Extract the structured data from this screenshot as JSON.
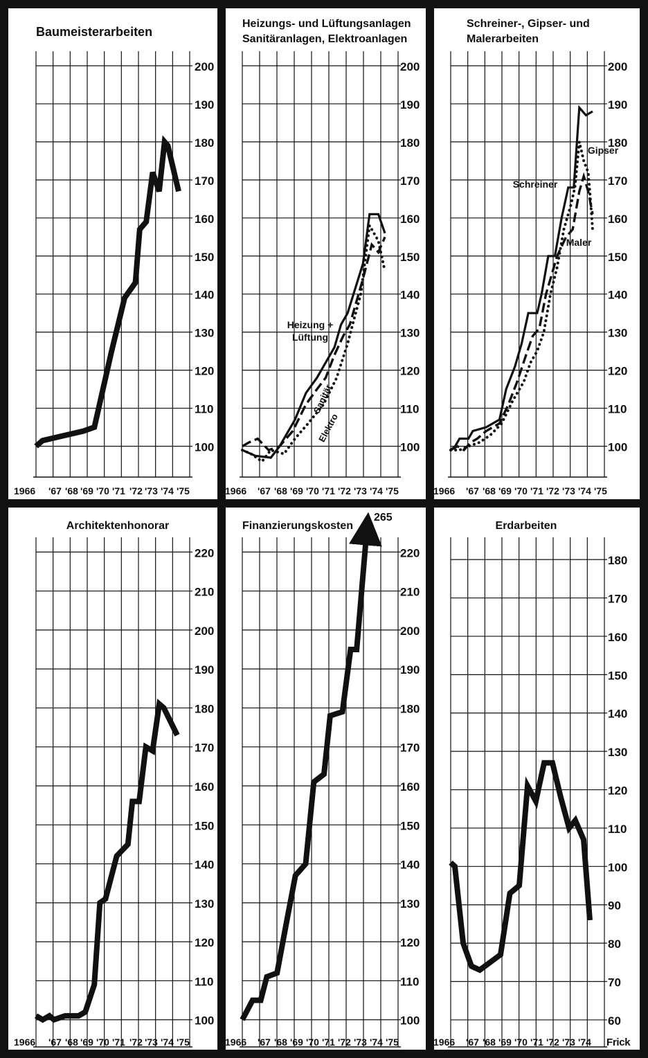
{
  "credit": "Frick",
  "colors": {
    "ink": "#111111",
    "paper": "#ffffff"
  },
  "chart_data": [
    {
      "type": "line",
      "title": "Baumeisterarbeiten",
      "x_tick_labels": [
        "1966",
        "'67",
        "'68",
        "'69",
        "'70",
        "'71",
        "'72",
        "'73",
        "'74",
        "'75"
      ],
      "y_ticks": [
        200,
        190,
        180,
        170,
        160,
        150,
        140,
        130,
        120,
        110,
        100
      ],
      "ylim": [
        97,
        202
      ],
      "grid": true,
      "series": [
        {
          "style": "thick",
          "points": [
            [
              1966.0,
              100
            ],
            [
              1966.3,
              101.5
            ],
            [
              1968.2,
              104
            ],
            [
              1968.7,
              105
            ],
            [
              1969.5,
              125
            ],
            [
              1970.1,
              139
            ],
            [
              1970.6,
              143
            ],
            [
              1970.8,
              157
            ],
            [
              1971.1,
              159
            ],
            [
              1971.4,
              172
            ],
            [
              1971.7,
              167
            ],
            [
              1971.95,
              180
            ],
            [
              1972.1,
              179
            ],
            [
              1972.6,
              167
            ]
          ]
        }
      ]
    },
    {
      "type": "line",
      "title": "Heizungs- und Lüftungsanlagen\nSanitäranlagen, Elektroanlagen",
      "x_tick_labels": [
        "1966",
        "'67",
        "'68",
        "'69",
        "'70",
        "'71",
        "'72",
        "'73",
        "'74",
        "'75"
      ],
      "y_ticks": [
        200,
        190,
        180,
        170,
        160,
        150,
        140,
        130,
        120,
        110,
        100
      ],
      "ylim": [
        97,
        202
      ],
      "grid": true,
      "series": [
        {
          "name": "Heizung + Lüftung",
          "style": "solid",
          "points": [
            [
              1966.0,
              99
            ],
            [
              1966.2,
              98.5
            ],
            [
              1966.6,
              97.5
            ],
            [
              1967.3,
              97
            ],
            [
              1967.7,
              100
            ],
            [
              1968.4,
              107
            ],
            [
              1968.9,
              114
            ],
            [
              1969.4,
              118
            ],
            [
              1969.7,
              121
            ],
            [
              1970.2,
              126
            ],
            [
              1970.5,
              132
            ],
            [
              1970.8,
              135
            ],
            [
              1971.5,
              148
            ],
            [
              1971.8,
              161
            ],
            [
              1972.2,
              161
            ],
            [
              1972.5,
              156
            ]
          ]
        },
        {
          "name": "Sanitär",
          "style": "dashed",
          "points": [
            [
              1966.0,
              100
            ],
            [
              1966.3,
              101
            ],
            [
              1966.7,
              102
            ],
            [
              1967.2,
              99
            ],
            [
              1967.7,
              100
            ],
            [
              1968.3,
              104
            ],
            [
              1968.9,
              111
            ],
            [
              1969.4,
              115
            ],
            [
              1969.8,
              118
            ],
            [
              1970.2,
              124
            ],
            [
              1970.6,
              129
            ],
            [
              1970.9,
              132
            ],
            [
              1971.5,
              144
            ],
            [
              1971.9,
              153
            ],
            [
              1972.2,
              151
            ],
            [
              1972.5,
              155
            ]
          ]
        },
        {
          "name": "Elektro",
          "style": "dotted",
          "points": [
            [
              1966.0,
              99
            ],
            [
              1966.4,
              98
            ],
            [
              1966.9,
              96
            ],
            [
              1967.3,
              99
            ],
            [
              1967.9,
              98
            ],
            [
              1968.4,
              102
            ],
            [
              1969.0,
              106
            ],
            [
              1969.7,
              111
            ],
            [
              1970.3,
              118
            ],
            [
              1970.8,
              127
            ],
            [
              1971.4,
              140
            ],
            [
              1971.8,
              158
            ],
            [
              1972.2,
              154
            ],
            [
              1972.5,
              146
            ]
          ]
        }
      ],
      "annotations": [
        "Heizung +\nLüftung",
        "Sanitär",
        "Elektro"
      ]
    },
    {
      "type": "line",
      "title": "Schreiner-, Gipser- und\nMalerarbeiten",
      "x_tick_labels": [
        "1966",
        "'67",
        "'68",
        "'69",
        "'70",
        "'71",
        "'72",
        "'73",
        "'74",
        "'75"
      ],
      "y_ticks": [
        200,
        190,
        180,
        170,
        160,
        150,
        140,
        130,
        120,
        110,
        100
      ],
      "ylim": [
        97,
        202
      ],
      "grid": true,
      "series": [
        {
          "name": "Schreiner",
          "style": "solid",
          "points": [
            [
              1966.0,
              99
            ],
            [
              1966.2,
              100
            ],
            [
              1966.4,
              102
            ],
            [
              1966.8,
              102
            ],
            [
              1967.0,
              104
            ],
            [
              1967.6,
              105
            ],
            [
              1968.2,
              107
            ],
            [
              1968.5,
              115
            ],
            [
              1968.9,
              121
            ],
            [
              1969.2,
              127
            ],
            [
              1969.5,
              135
            ],
            [
              1969.9,
              135
            ],
            [
              1970.1,
              140
            ],
            [
              1970.4,
              150
            ],
            [
              1970.7,
              150
            ],
            [
              1971.0,
              160
            ],
            [
              1971.3,
              168
            ],
            [
              1971.55,
              168
            ],
            [
              1971.8,
              189
            ],
            [
              1972.1,
              187
            ],
            [
              1972.4,
              188
            ]
          ]
        },
        {
          "name": "Maler",
          "style": "dashed",
          "points": [
            [
              1966.0,
              99
            ],
            [
              1966.3,
              100
            ],
            [
              1966.6,
              99
            ],
            [
              1966.9,
              101
            ],
            [
              1967.2,
              102
            ],
            [
              1967.6,
              104
            ],
            [
              1968.2,
              106
            ],
            [
              1968.6,
              111
            ],
            [
              1969.0,
              117
            ],
            [
              1969.4,
              124
            ],
            [
              1969.7,
              129
            ],
            [
              1970.0,
              131
            ],
            [
              1970.3,
              140
            ],
            [
              1970.8,
              150
            ],
            [
              1971.2,
              155
            ],
            [
              1971.5,
              157
            ],
            [
              1971.8,
              167
            ],
            [
              1972.0,
              171
            ],
            [
              1972.2,
              167
            ],
            [
              1972.4,
              161
            ]
          ]
        },
        {
          "name": "Gipser",
          "style": "dotted",
          "points": [
            [
              1966.0,
              99
            ],
            [
              1966.4,
              99
            ],
            [
              1966.8,
              100
            ],
            [
              1967.3,
              101
            ],
            [
              1967.8,
              103
            ],
            [
              1968.3,
              106
            ],
            [
              1968.8,
              112
            ],
            [
              1969.3,
              117
            ],
            [
              1969.6,
              122
            ],
            [
              1969.9,
              125
            ],
            [
              1970.2,
              130
            ],
            [
              1970.5,
              140
            ],
            [
              1970.8,
              147
            ],
            [
              1971.1,
              157
            ],
            [
              1971.4,
              163
            ],
            [
              1971.6,
              168
            ],
            [
              1971.8,
              180
            ],
            [
              1972.0,
              175
            ],
            [
              1972.2,
              172
            ],
            [
              1972.3,
              165
            ],
            [
              1972.4,
              157
            ]
          ]
        }
      ],
      "annotations": [
        "Schreiner",
        "Gipser",
        "Maler"
      ]
    },
    {
      "type": "line",
      "title": "Architektenhonorar",
      "x_tick_labels": [
        "1966",
        "'67",
        "'68",
        "'69",
        "'70",
        "'71",
        "'72",
        "'73",
        "'74",
        "'75"
      ],
      "y_ticks": [
        220,
        210,
        200,
        190,
        180,
        170,
        160,
        150,
        140,
        130,
        120,
        110,
        100
      ],
      "ylim": [
        98,
        222
      ],
      "grid": true,
      "series": [
        {
          "style": "thick",
          "points": [
            [
              1966.0,
              101
            ],
            [
              1966.3,
              100
            ],
            [
              1966.6,
              101
            ],
            [
              1966.8,
              100
            ],
            [
              1967.3,
              101
            ],
            [
              1967.9,
              101
            ],
            [
              1968.2,
              102
            ],
            [
              1968.6,
              109
            ],
            [
              1968.85,
              130
            ],
            [
              1969.1,
              131
            ],
            [
              1969.6,
              142
            ],
            [
              1970.1,
              145
            ],
            [
              1970.3,
              156
            ],
            [
              1970.6,
              156
            ],
            [
              1970.9,
              170
            ],
            [
              1971.2,
              169
            ],
            [
              1971.5,
              181
            ],
            [
              1971.7,
              180
            ],
            [
              1972.3,
              173
            ]
          ]
        }
      ]
    },
    {
      "type": "line",
      "title": "Finanzierungskosten",
      "x_tick_labels": [
        "1966",
        "'67",
        "'68",
        "'69",
        "'70",
        "'71",
        "'72",
        "'73",
        "'74",
        "'75"
      ],
      "y_ticks": [
        220,
        210,
        200,
        190,
        180,
        170,
        160,
        150,
        140,
        130,
        120,
        110,
        100
      ],
      "ylim": [
        98,
        222
      ],
      "grid": true,
      "series": [
        {
          "style": "thick",
          "points": [
            [
              1966.0,
              100
            ],
            [
              1966.5,
              105
            ],
            [
              1966.9,
              105
            ],
            [
              1967.2,
              111
            ],
            [
              1967.7,
              112
            ],
            [
              1968.2,
              126
            ],
            [
              1968.6,
              137
            ],
            [
              1969.1,
              140
            ],
            [
              1969.5,
              161
            ],
            [
              1970.0,
              163
            ],
            [
              1970.3,
              178
            ],
            [
              1970.9,
              179
            ],
            [
              1971.3,
              195
            ],
            [
              1971.6,
              195
            ],
            [
              1972.1,
              226
            ]
          ]
        }
      ],
      "arrow_label": "265"
    },
    {
      "type": "line",
      "title": "Erdarbeiten",
      "x_tick_labels": [
        "1966",
        "'67",
        "'68",
        "'69",
        "'70",
        "'71",
        "'72",
        "'73",
        "'74"
      ],
      "y_ticks": [
        180,
        170,
        160,
        150,
        140,
        130,
        120,
        110,
        100,
        90,
        80,
        70,
        60
      ],
      "ylim": [
        58,
        184
      ],
      "grid": true,
      "series": [
        {
          "style": "thick",
          "points": [
            [
              1966.0,
              101
            ],
            [
              1966.2,
              100
            ],
            [
              1966.6,
              80
            ],
            [
              1967.0,
              74
            ],
            [
              1967.4,
              73
            ],
            [
              1967.9,
              75
            ],
            [
              1968.4,
              77
            ],
            [
              1968.85,
              93
            ],
            [
              1969.3,
              95
            ],
            [
              1969.7,
              121
            ],
            [
              1970.1,
              117
            ],
            [
              1970.5,
              127
            ],
            [
              1970.9,
              127
            ],
            [
              1971.3,
              118
            ],
            [
              1971.7,
              110
            ],
            [
              1972.0,
              112
            ],
            [
              1972.4,
              107
            ],
            [
              1972.7,
              86
            ]
          ]
        }
      ]
    }
  ]
}
